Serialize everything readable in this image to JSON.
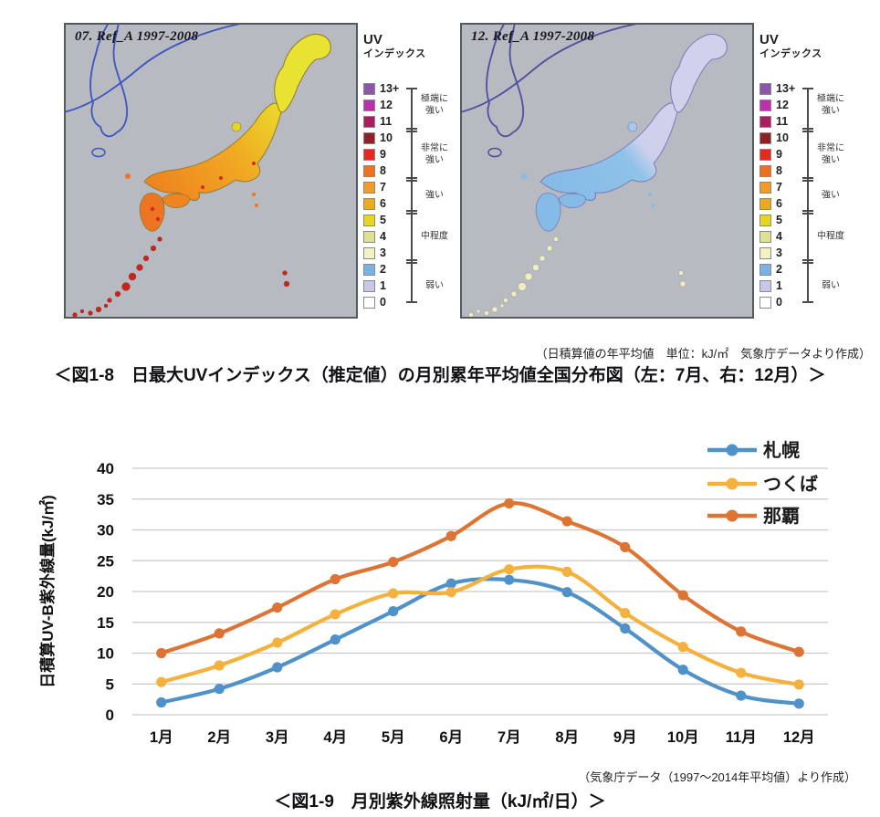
{
  "figure_maps": {
    "left_map": {
      "title": "07. Ref_A 1997-2008"
    },
    "right_map": {
      "title": "12. Ref_A 1997-2008"
    },
    "panel": {
      "background": "#b7bac0",
      "border": "#55585c"
    },
    "legend": {
      "heading_line1": "UV",
      "heading_line2": "インデックス",
      "items": [
        {
          "value": "13+",
          "color": "#8c57ab"
        },
        {
          "value": "12",
          "color": "#bb30ae"
        },
        {
          "value": "11",
          "color": "#a81e5f"
        },
        {
          "value": "10",
          "color": "#8f2026"
        },
        {
          "value": "9",
          "color": "#e6291f"
        },
        {
          "value": "8",
          "color": "#ee7120"
        },
        {
          "value": "7",
          "color": "#f29a2b"
        },
        {
          "value": "6",
          "color": "#edaa1e"
        },
        {
          "value": "5",
          "color": "#e6d621"
        },
        {
          "value": "4",
          "color": "#dee092"
        },
        {
          "value": "3",
          "color": "#f3f1c6"
        },
        {
          "value": "2",
          "color": "#79b2e3"
        },
        {
          "value": "1",
          "color": "#c7c7e8"
        },
        {
          "value": "0",
          "color": "#ffffff"
        }
      ],
      "categories": [
        {
          "label": "極端に強い",
          "rows": 3
        },
        {
          "label": "非常に強い",
          "rows": 3
        },
        {
          "label": "強い",
          "rows": 2
        },
        {
          "label": "中程度",
          "rows": 3
        },
        {
          "label": "弱い",
          "rows": 3
        }
      ]
    },
    "map_colors": {
      "july": {
        "hokkaido": "#e8e232",
        "honshu_stops": [
          [
            "0",
            "#ead82c"
          ],
          [
            "0.45",
            "#f0a922"
          ],
          [
            "1",
            "#ef8520"
          ]
        ],
        "shikoku": "#ee8422",
        "kyushu": "#ed7420",
        "sado": "#e5d62a",
        "okinawa": "#c92418",
        "speckle": "#d5291b",
        "outline": "#8f7b2e",
        "coastline": "#3c55c0"
      },
      "december": {
        "hokkaido": "#d1d1ed",
        "honshu_stops": [
          [
            "0",
            "#d1d1ed"
          ],
          [
            "0.34",
            "#cdd0ec"
          ],
          [
            "0.48",
            "#8fc2e9"
          ],
          [
            "1",
            "#85bbe6"
          ]
        ],
        "shikoku": "#85bbe6",
        "kyushu": "#85bbe6",
        "sado": "#a9c9ec",
        "okinawa": "#efedc2",
        "speckle": "transparent",
        "outline": "#7a7ab8",
        "coastline": "#4f4f9e"
      }
    },
    "source_note": "（日積算値の年平均値　単位：kJ/㎡　気象庁データより作成）",
    "caption": "＜図1-8　日最大UVインデックス（推定値）の月別累年平均値全国分布図（左：7月、右：12月）＞"
  },
  "chart_data": {
    "type": "line",
    "categories": [
      "1月",
      "2月",
      "3月",
      "4月",
      "5月",
      "6月",
      "7月",
      "8月",
      "9月",
      "10月",
      "11月",
      "12月"
    ],
    "series": [
      {
        "name": "札幌",
        "color": "#4f92c9",
        "values": [
          2.0,
          4.2,
          7.7,
          12.2,
          16.8,
          21.3,
          21.9,
          19.9,
          14.0,
          7.3,
          3.1,
          1.8
        ]
      },
      {
        "name": "つくば",
        "color": "#f5b13d",
        "values": [
          5.3,
          8.0,
          11.7,
          16.3,
          19.7,
          19.9,
          23.6,
          23.2,
          16.5,
          11.0,
          6.8,
          4.9
        ]
      },
      {
        "name": "那覇",
        "color": "#dd7434",
        "values": [
          10.0,
          13.2,
          17.4,
          22.0,
          24.8,
          29.0,
          34.3,
          31.4,
          27.2,
          19.4,
          13.5,
          10.2
        ]
      }
    ],
    "ylabel": "日積算UV-B紫外線量(kJ/㎡)",
    "xlabel": "",
    "ylim": [
      0,
      40
    ],
    "ytick_step": 5,
    "grid": true,
    "gridline_color": "#c9c9c9",
    "legend_position": "top-right",
    "source_note": "（気象庁データ（1997～2014年平均値）より作成）",
    "caption": "＜図1-9　月別紫外線照射量（kJ/㎡/日）＞"
  }
}
